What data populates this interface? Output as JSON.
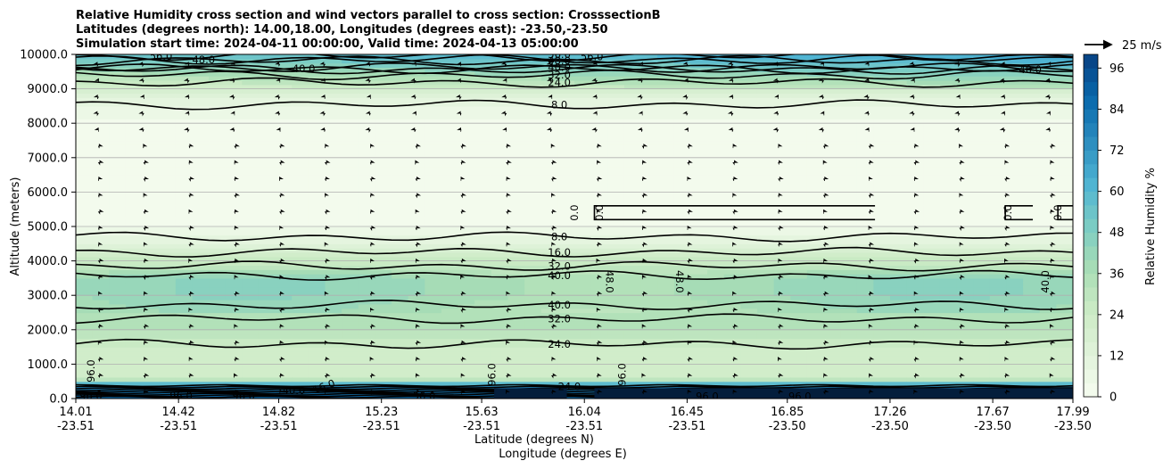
{
  "title_lines": [
    "Relative Humidity cross section and wind vectors parallel to cross section: CrosssectionB",
    "Latitudes (degrees north): 14.00,18.00, Longitudes (degrees east): -23.50,-23.50",
    "Simulation start time: 2024-04-11 00:00:00, Valid time: 2024-04-13 05:00:00"
  ],
  "chart_data": {
    "type": "heatmap",
    "ylabel": "Altitude (meters)",
    "xlabel_line1": "Latitude (degrees N)",
    "xlabel_line2": "Longitude (degrees E)",
    "ylim": [
      0,
      10000
    ],
    "y_ticks": [
      "0.0",
      "1000.0",
      "2000.0",
      "3000.0",
      "4000.0",
      "5000.0",
      "6000.0",
      "7000.0",
      "8000.0",
      "9000.0",
      "10000.0"
    ],
    "y_tick_values": [
      0,
      1000,
      2000,
      3000,
      4000,
      5000,
      6000,
      7000,
      8000,
      9000,
      10000
    ],
    "x_ticks": [
      {
        "lat": "14.01",
        "lon": "-23.51"
      },
      {
        "lat": "14.42",
        "lon": "-23.51"
      },
      {
        "lat": "14.82",
        "lon": "-23.51"
      },
      {
        "lat": "15.23",
        "lon": "-23.51"
      },
      {
        "lat": "15.63",
        "lon": "-23.51"
      },
      {
        "lat": "16.04",
        "lon": "-23.51"
      },
      {
        "lat": "16.45",
        "lon": "-23.51"
      },
      {
        "lat": "16.85",
        "lon": "-23.50"
      },
      {
        "lat": "17.26",
        "lon": "-23.50"
      },
      {
        "lat": "17.67",
        "lon": "-23.50"
      },
      {
        "lat": "17.99",
        "lon": "-23.50"
      }
    ],
    "xlim": [
      14.01,
      17.99
    ],
    "grid": "horizontal",
    "colorbar": {
      "label": "Relative Humidity %",
      "ticks": [
        "0",
        "12",
        "24",
        "36",
        "48",
        "60",
        "72",
        "84",
        "96"
      ],
      "tick_values": [
        0,
        12,
        24,
        36,
        48,
        60,
        72,
        84,
        96
      ],
      "range": [
        0,
        100
      ],
      "levels": 25,
      "colormap": "GnBu"
    },
    "quiver_key": {
      "label": "25 m/s"
    },
    "rh_profile": [
      {
        "alt": 0,
        "rh": 90
      },
      {
        "alt": 150,
        "rh": 85
      },
      {
        "alt": 350,
        "rh": 75
      },
      {
        "alt": 600,
        "rh": 22
      },
      {
        "alt": 1000,
        "rh": 20
      },
      {
        "alt": 1500,
        "rh": 24
      },
      {
        "alt": 2000,
        "rh": 32
      },
      {
        "alt": 2500,
        "rh": 36
      },
      {
        "alt": 3000,
        "rh": 40
      },
      {
        "alt": 3500,
        "rh": 40
      },
      {
        "alt": 4000,
        "rh": 26
      },
      {
        "alt": 4500,
        "rh": 12
      },
      {
        "alt": 5000,
        "rh": 3
      },
      {
        "alt": 6000,
        "rh": 1
      },
      {
        "alt": 7000,
        "rh": 1
      },
      {
        "alt": 8000,
        "rh": 3
      },
      {
        "alt": 8800,
        "rh": 12
      },
      {
        "alt": 9300,
        "rh": 30
      },
      {
        "alt": 9700,
        "rh": 45
      },
      {
        "alt": 10000,
        "rh": 55
      }
    ],
    "contours": [
      {
        "label": "8.0",
        "alt": 4700,
        "label_lat": 15.94
      },
      {
        "label": "16.0",
        "alt": 4250,
        "label_lat": 15.94
      },
      {
        "label": "32.0",
        "alt": 3850,
        "label_lat": 15.94
      },
      {
        "label": "40.0",
        "alt": 3580,
        "label_lat": 15.94
      },
      {
        "label": "40.0",
        "alt": 2720,
        "label_lat": 15.94
      },
      {
        "label": "32.0",
        "alt": 2320,
        "label_lat": 15.94
      },
      {
        "label": "24.0",
        "alt": 1580,
        "label_lat": 15.94
      },
      {
        "label": "8.0",
        "alt": 8540,
        "label_lat": 15.94
      },
      {
        "label": "24.0",
        "alt": 9180,
        "label_lat": 15.94
      },
      {
        "label": "32.0",
        "alt": 9400,
        "label_lat": 15.94
      },
      {
        "label": "40.0",
        "alt": 9620,
        "label_lat": 15.94
      },
      {
        "label": "48.0",
        "alt": 9820,
        "label_lat": 15.94
      },
      {
        "label": "40.0",
        "alt": 9580,
        "label_lat": 14.92
      },
      {
        "label": "48.0",
        "alt": 9850,
        "label_lat": 14.52
      },
      {
        "label": "56.0",
        "alt": 9950,
        "label_lat": 14.35
      },
      {
        "label": "40.0",
        "alt": 9560,
        "label_lat": 17.82
      }
    ],
    "extra_labels": [
      {
        "text": "0.0",
        "lat": 16.0,
        "alt": 5400,
        "rot": -90
      },
      {
        "text": "0.0",
        "lat": 16.1,
        "alt": 5400,
        "rot": -90
      },
      {
        "text": "0.0",
        "lat": 17.73,
        "alt": 5400,
        "rot": -90
      },
      {
        "text": "0.0",
        "lat": 17.93,
        "alt": 5400,
        "rot": -90
      },
      {
        "text": "48.0",
        "lat": 16.14,
        "alt": 3400,
        "rot": 90
      },
      {
        "text": "48.0",
        "lat": 16.42,
        "alt": 3400,
        "rot": 90
      },
      {
        "text": "40.0",
        "lat": 17.88,
        "alt": 3400,
        "rot": -90
      },
      {
        "text": "96.0",
        "lat": 14.07,
        "alt": 800,
        "rot": -90
      },
      {
        "text": "96.0",
        "lat": 15.67,
        "alt": 700,
        "rot": -90
      },
      {
        "text": "96.0",
        "lat": 16.19,
        "alt": 700,
        "rot": -90
      },
      {
        "text": "96.0",
        "lat": 14.07,
        "alt": 80,
        "rot": 0
      },
      {
        "text": "96.0",
        "lat": 14.43,
        "alt": 80,
        "rot": 0
      },
      {
        "text": "96.0",
        "lat": 14.68,
        "alt": 80,
        "rot": 0
      },
      {
        "text": "96.0",
        "lat": 15.4,
        "alt": 80,
        "rot": 0
      },
      {
        "text": "96.0",
        "lat": 16.53,
        "alt": 60,
        "rot": 0
      },
      {
        "text": "96.0",
        "lat": 16.9,
        "alt": 60,
        "rot": 0
      },
      {
        "text": "40.0",
        "lat": 14.88,
        "alt": 230,
        "rot": 0
      },
      {
        "text": "16.0",
        "lat": 15.0,
        "alt": 350,
        "rot": -20
      },
      {
        "text": "24.0",
        "lat": 15.98,
        "alt": 350,
        "rot": 0
      },
      {
        "text": "56.0",
        "lat": 15.94,
        "alt": 10000,
        "rot": 0
      },
      {
        "text": "56.0",
        "lat": 16.07,
        "alt": 9940,
        "rot": 0
      }
    ]
  }
}
